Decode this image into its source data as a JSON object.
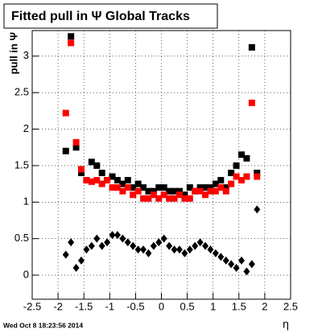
{
  "chart_data": {
    "type": "scatter",
    "title": "Fitted pull in Ψ   Global Tracks",
    "y_label": "pull in Ψ",
    "x_label": "η",
    "footer": "Wed Oct  8 18:23:56 2014",
    "xlim": [
      -2.5,
      2.5
    ],
    "ylim": [
      -0.33,
      3.35
    ],
    "xticks": [
      -2.5,
      -2,
      -1.5,
      -1,
      -0.5,
      0,
      0.5,
      1,
      1.5,
      2,
      2.5
    ],
    "yticks": [
      0,
      0.5,
      1,
      1.5,
      2,
      2.5,
      3
    ],
    "grid": true,
    "x": [
      -1.85,
      -1.75,
      -1.65,
      -1.55,
      -1.45,
      -1.35,
      -1.25,
      -1.15,
      -1.05,
      -0.95,
      -0.85,
      -0.75,
      -0.65,
      -0.55,
      -0.45,
      -0.35,
      -0.25,
      -0.15,
      -0.05,
      0.05,
      0.15,
      0.25,
      0.35,
      0.45,
      0.55,
      0.65,
      0.75,
      0.85,
      0.95,
      1.05,
      1.15,
      1.25,
      1.35,
      1.45,
      1.55,
      1.65,
      1.75,
      1.85
    ],
    "series": [
      {
        "color": "#000000",
        "marker": "square",
        "values": [
          1.7,
          3.27,
          1.75,
          1.4,
          1.3,
          1.55,
          1.5,
          1.4,
          1.3,
          1.35,
          1.3,
          1.25,
          1.3,
          1.2,
          1.25,
          1.2,
          1.15,
          1.15,
          1.2,
          1.2,
          1.15,
          1.15,
          1.15,
          1.1,
          1.2,
          1.15,
          1.2,
          1.2,
          1.2,
          1.25,
          1.3,
          1.2,
          1.4,
          1.5,
          1.65,
          1.6,
          3.12,
          1.4
        ]
      },
      {
        "color": "#ff0000",
        "marker": "square",
        "values": [
          2.22,
          3.18,
          1.82,
          1.45,
          1.3,
          1.28,
          1.3,
          1.25,
          1.3,
          1.2,
          1.2,
          1.15,
          1.2,
          1.1,
          1.15,
          1.05,
          1.05,
          1.1,
          1.05,
          1.1,
          1.05,
          1.05,
          1.1,
          1.05,
          1.05,
          1.15,
          1.15,
          1.1,
          1.15,
          1.15,
          1.2,
          1.15,
          1.25,
          1.35,
          1.3,
          1.35,
          2.36,
          1.35
        ]
      },
      {
        "color": "#000000",
        "marker": "diamond",
        "values": [
          0.28,
          0.45,
          0.1,
          0.2,
          0.35,
          0.4,
          0.5,
          0.4,
          0.45,
          0.55,
          0.55,
          0.5,
          0.45,
          0.4,
          0.35,
          0.35,
          0.3,
          0.4,
          0.45,
          0.5,
          0.4,
          0.35,
          0.35,
          0.3,
          0.35,
          0.4,
          0.45,
          0.4,
          0.35,
          0.3,
          0.25,
          0.2,
          0.15,
          0.1,
          0.2,
          0.05,
          0.15,
          0.9
        ]
      }
    ]
  }
}
